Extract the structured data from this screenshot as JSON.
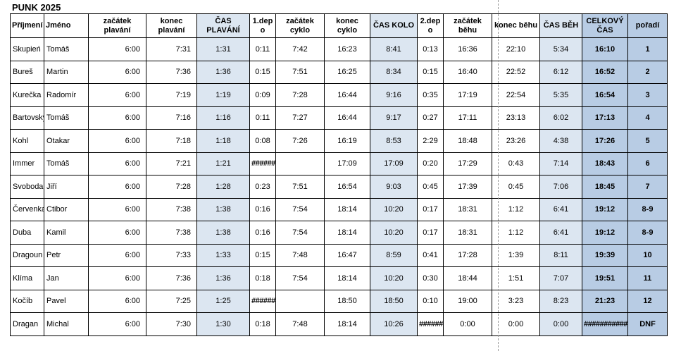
{
  "title": "PUNK 2025",
  "headers": [
    "Příjmení",
    "Jméno",
    "začátek plavání",
    "konec plavání",
    "ČAS PLAVÁNÍ",
    "1.dep o",
    "začátek cyklo",
    "konec cyklo",
    "ČAS KOLO",
    "2.dep o",
    "začátek běhu",
    "konec běhu",
    "ČAS BĚH",
    "CELKOVÝ ČAS",
    "pořadí"
  ],
  "rows": [
    [
      "Skupień",
      "Tomáš",
      "6:00",
      "7:31",
      "1:31",
      "0:11",
      "7:42",
      "16:23",
      "8:41",
      "0:13",
      "16:36",
      "22:10",
      "5:34",
      "16:10",
      "1"
    ],
    [
      "Bureš",
      "Martin",
      "6:00",
      "7:36",
      "1:36",
      "0:15",
      "7:51",
      "16:25",
      "8:34",
      "0:15",
      "16:40",
      "22:52",
      "6:12",
      "16:52",
      "2"
    ],
    [
      "Kurečka",
      "Radomír",
      "6:00",
      "7:19",
      "1:19",
      "0:09",
      "7:28",
      "16:44",
      "9:16",
      "0:35",
      "17:19",
      "22:54",
      "5:35",
      "16:54",
      "3"
    ],
    [
      "Bartovský",
      "Tomáš",
      "6:00",
      "7:16",
      "1:16",
      "0:11",
      "7:27",
      "16:44",
      "9:17",
      "0:27",
      "17:11",
      "23:13",
      "6:02",
      "17:13",
      "4"
    ],
    [
      "Kohl",
      "Otakar",
      "6:00",
      "7:18",
      "1:18",
      "0:08",
      "7:26",
      "16:19",
      "8:53",
      "2:29",
      "18:48",
      "23:26",
      "4:38",
      "17:26",
      "5"
    ],
    [
      "Immer",
      "Tomáš",
      "6:00",
      "7:21",
      "1:21",
      "######",
      "",
      "17:09",
      "17:09",
      "0:20",
      "17:29",
      "0:43",
      "7:14",
      "18:43",
      "6"
    ],
    [
      "Svoboda",
      "Jiří",
      "6:00",
      "7:28",
      "1:28",
      "0:23",
      "7:51",
      "16:54",
      "9:03",
      "0:45",
      "17:39",
      "0:45",
      "7:06",
      "18:45",
      "7"
    ],
    [
      "Červenka",
      "Ctibor",
      "6:00",
      "7:38",
      "1:38",
      "0:16",
      "7:54",
      "18:14",
      "10:20",
      "0:17",
      "18:31",
      "1:12",
      "6:41",
      "19:12",
      "8-9"
    ],
    [
      "Duba",
      "Kamil",
      "6:00",
      "7:38",
      "1:38",
      "0:16",
      "7:54",
      "18:14",
      "10:20",
      "0:17",
      "18:31",
      "1:12",
      "6:41",
      "19:12",
      "8-9"
    ],
    [
      "Dragoun",
      "Petr",
      "6:00",
      "7:33",
      "1:33",
      "0:15",
      "7:48",
      "16:47",
      "8:59",
      "0:41",
      "17:28",
      "1:39",
      "8:11",
      "19:39",
      "10"
    ],
    [
      "Klíma",
      "Jan",
      "6:00",
      "7:36",
      "1:36",
      "0:18",
      "7:54",
      "18:14",
      "10:20",
      "0:30",
      "18:44",
      "1:51",
      "7:07",
      "19:51",
      "11"
    ],
    [
      "Kočíb",
      "Pavel",
      "6:00",
      "7:25",
      "1:25",
      "######",
      "",
      "18:50",
      "18:50",
      "0:10",
      "19:00",
      "3:23",
      "8:23",
      "21:23",
      "12"
    ],
    [
      "Dragan",
      "Michal",
      "6:00",
      "7:30",
      "1:30",
      "0:18",
      "7:48",
      "18:14",
      "10:26",
      "######",
      "0:00",
      "0:00",
      "0:00",
      "###########",
      "DNF"
    ]
  ]
}
